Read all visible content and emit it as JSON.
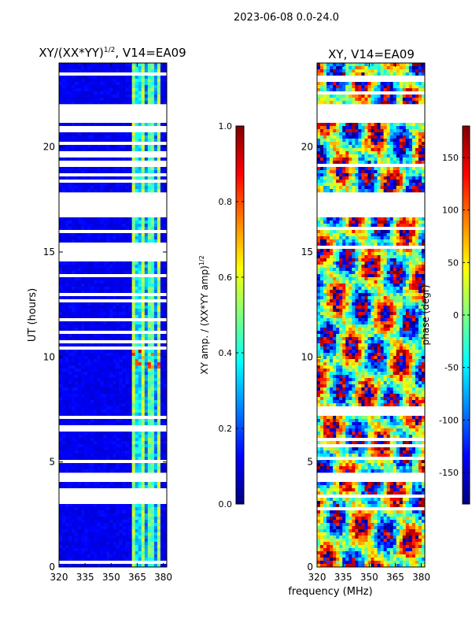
{
  "suptitle": "2023-06-08 0.0-24.0",
  "chart_data": [
    {
      "type": "heatmap",
      "title_main": "XY/(XX*YY)",
      "title_sup": "1/2",
      "title_tail": ", V14=EA09",
      "xlabel": "",
      "ylabel": "UT (hours)",
      "x_ticks": [
        "320",
        "335",
        "350",
        "365",
        "380"
      ],
      "y_ticks": [
        "0",
        "5",
        "10",
        "15",
        "20"
      ],
      "xlim": [
        320,
        382
      ],
      "ylim": [
        0,
        24
      ],
      "colorbar": {
        "label_main": "XY amp. / (XX*YY amp)",
        "label_sup": "1/2",
        "ticks": [
          "0.0",
          "0.2",
          "0.4",
          "0.6",
          "0.8",
          "1.0"
        ],
        "range": [
          0.0,
          1.0
        ],
        "colormap": "jet"
      },
      "blank_ut_hours": [
        [
          22.0,
          21.2
        ],
        [
          17.9,
          16.7
        ],
        [
          4.5,
          4.0
        ]
      ]
    },
    {
      "type": "heatmap",
      "title": "XY, V14=EA09",
      "xlabel": "frequency (MHz)",
      "ylabel": "",
      "x_ticks": [
        "320",
        "335",
        "350",
        "365",
        "380"
      ],
      "y_ticks": [
        "0",
        "5",
        "10",
        "15",
        "20"
      ],
      "xlim": [
        320,
        382
      ],
      "ylim": [
        0,
        24
      ],
      "colorbar": {
        "label": "phase (degr)",
        "ticks": [
          "-150",
          "-100",
          "-50",
          "0",
          "50",
          "100",
          "150"
        ],
        "range": [
          -180,
          180
        ],
        "colormap": "jet"
      },
      "blank_ut_hours": [
        [
          22.0,
          21.2
        ],
        [
          17.9,
          16.7
        ],
        [
          4.5,
          4.0
        ]
      ]
    }
  ]
}
